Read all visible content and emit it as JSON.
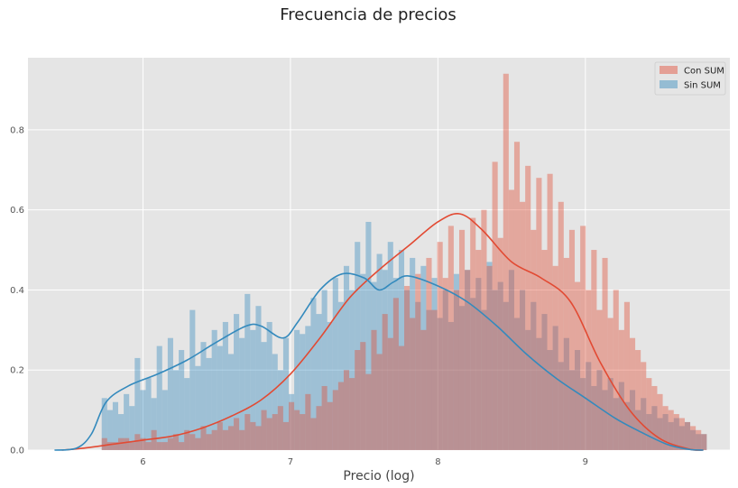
{
  "chart_data": {
    "type": "histogram",
    "title": "Frecuencia de precios",
    "xlabel": "Precio (log)",
    "ylabel": "",
    "xlim": [
      5.22,
      9.98
    ],
    "ylim": [
      0,
      0.98
    ],
    "xticks": [
      "6",
      "7",
      "8",
      "9"
    ],
    "yticks": [
      "0.0",
      "0.2",
      "0.4",
      "0.6",
      "0.8"
    ],
    "xtick_values": [
      6,
      7,
      8,
      9
    ],
    "ytick_values": [
      0,
      0.2,
      0.4,
      0.6,
      0.8
    ],
    "grid": true,
    "legend_position": "top-right",
    "bin_start": 5.72,
    "bin_width": 0.0373,
    "series": [
      {
        "name": "Con SUM",
        "color": "#e24a33",
        "hist_values": [
          0.03,
          0.02,
          0.02,
          0.03,
          0.03,
          0.02,
          0.04,
          0.03,
          0.02,
          0.05,
          0.02,
          0.02,
          0.03,
          0.04,
          0.02,
          0.05,
          0.04,
          0.03,
          0.06,
          0.04,
          0.05,
          0.07,
          0.05,
          0.06,
          0.08,
          0.05,
          0.09,
          0.07,
          0.06,
          0.1,
          0.08,
          0.09,
          0.11,
          0.07,
          0.12,
          0.1,
          0.09,
          0.14,
          0.08,
          0.11,
          0.16,
          0.12,
          0.15,
          0.17,
          0.2,
          0.18,
          0.25,
          0.27,
          0.19,
          0.3,
          0.24,
          0.34,
          0.28,
          0.38,
          0.26,
          0.41,
          0.33,
          0.44,
          0.3,
          0.48,
          0.35,
          0.52,
          0.43,
          0.56,
          0.4,
          0.55,
          0.45,
          0.58,
          0.5,
          0.6,
          0.46,
          0.72,
          0.53,
          0.94,
          0.65,
          0.77,
          0.62,
          0.71,
          0.55,
          0.68,
          0.5,
          0.69,
          0.46,
          0.62,
          0.48,
          0.55,
          0.42,
          0.56,
          0.4,
          0.5,
          0.35,
          0.48,
          0.33,
          0.4,
          0.3,
          0.37,
          0.28,
          0.25,
          0.22,
          0.18,
          0.16,
          0.14,
          0.11,
          0.1,
          0.09,
          0.08,
          0.07,
          0.06,
          0.05,
          0.04
        ],
        "kde": [
          [
            5.45,
            0.0
          ],
          [
            5.6,
            0.005
          ],
          [
            5.8,
            0.015
          ],
          [
            6.0,
            0.025
          ],
          [
            6.2,
            0.035
          ],
          [
            6.4,
            0.055
          ],
          [
            6.6,
            0.085
          ],
          [
            6.8,
            0.125
          ],
          [
            7.0,
            0.19
          ],
          [
            7.2,
            0.28
          ],
          [
            7.4,
            0.38
          ],
          [
            7.6,
            0.45
          ],
          [
            7.8,
            0.51
          ],
          [
            8.0,
            0.57
          ],
          [
            8.15,
            0.59
          ],
          [
            8.3,
            0.55
          ],
          [
            8.5,
            0.47
          ],
          [
            8.7,
            0.43
          ],
          [
            8.9,
            0.37
          ],
          [
            9.1,
            0.22
          ],
          [
            9.3,
            0.1
          ],
          [
            9.5,
            0.03
          ],
          [
            9.7,
            0.003
          ],
          [
            9.8,
            0.0
          ]
        ]
      },
      {
        "name": "Sin SUM",
        "color": "#348abd",
        "hist_values": [
          0.13,
          0.1,
          0.12,
          0.09,
          0.14,
          0.11,
          0.23,
          0.15,
          0.18,
          0.13,
          0.26,
          0.15,
          0.28,
          0.2,
          0.25,
          0.18,
          0.35,
          0.21,
          0.27,
          0.23,
          0.3,
          0.26,
          0.32,
          0.24,
          0.34,
          0.28,
          0.39,
          0.3,
          0.36,
          0.27,
          0.32,
          0.24,
          0.2,
          0.28,
          0.14,
          0.3,
          0.29,
          0.31,
          0.38,
          0.34,
          0.4,
          0.32,
          0.43,
          0.37,
          0.46,
          0.4,
          0.52,
          0.44,
          0.57,
          0.42,
          0.49,
          0.45,
          0.52,
          0.43,
          0.5,
          0.4,
          0.48,
          0.37,
          0.46,
          0.35,
          0.43,
          0.33,
          0.4,
          0.32,
          0.44,
          0.36,
          0.45,
          0.38,
          0.43,
          0.35,
          0.47,
          0.4,
          0.42,
          0.37,
          0.45,
          0.33,
          0.4,
          0.3,
          0.37,
          0.28,
          0.34,
          0.25,
          0.31,
          0.22,
          0.28,
          0.2,
          0.25,
          0.18,
          0.22,
          0.16,
          0.2,
          0.15,
          0.18,
          0.13,
          0.17,
          0.12,
          0.15,
          0.1,
          0.13,
          0.09,
          0.11,
          0.08,
          0.09,
          0.07,
          0.08,
          0.06,
          0.07,
          0.05,
          0.04,
          0.04
        ],
        "kde": [
          [
            5.4,
            0.0
          ],
          [
            5.55,
            0.005
          ],
          [
            5.65,
            0.04
          ],
          [
            5.75,
            0.12
          ],
          [
            5.9,
            0.16
          ],
          [
            6.1,
            0.19
          ],
          [
            6.3,
            0.225
          ],
          [
            6.5,
            0.27
          ],
          [
            6.7,
            0.31
          ],
          [
            6.8,
            0.31
          ],
          [
            6.95,
            0.28
          ],
          [
            7.05,
            0.32
          ],
          [
            7.2,
            0.4
          ],
          [
            7.35,
            0.44
          ],
          [
            7.5,
            0.43
          ],
          [
            7.6,
            0.4
          ],
          [
            7.7,
            0.42
          ],
          [
            7.8,
            0.435
          ],
          [
            8.0,
            0.41
          ],
          [
            8.2,
            0.37
          ],
          [
            8.4,
            0.31
          ],
          [
            8.6,
            0.24
          ],
          [
            8.8,
            0.18
          ],
          [
            9.0,
            0.13
          ],
          [
            9.2,
            0.08
          ],
          [
            9.35,
            0.05
          ],
          [
            9.55,
            0.015
          ],
          [
            9.7,
            0.002
          ],
          [
            9.8,
            0.0
          ]
        ]
      }
    ]
  }
}
